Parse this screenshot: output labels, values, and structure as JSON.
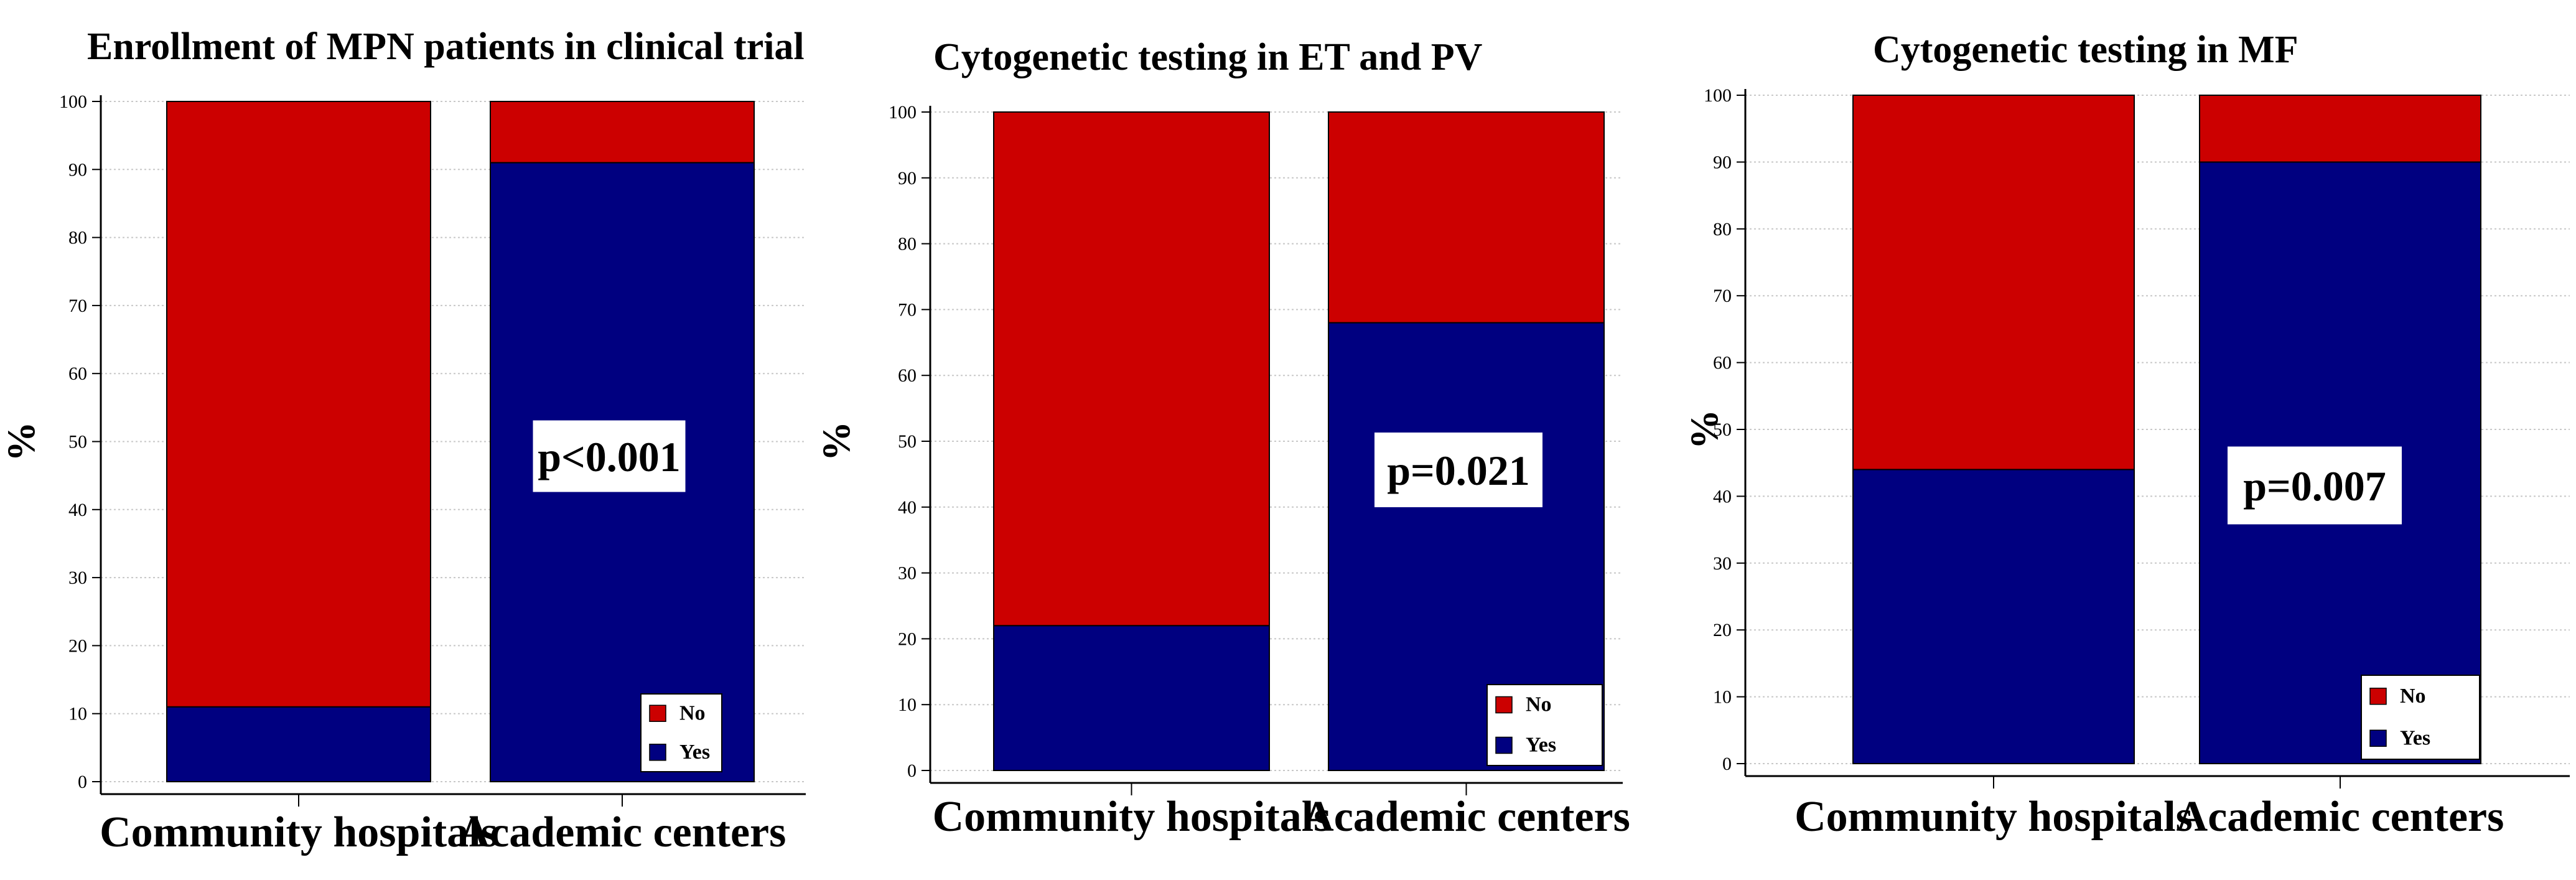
{
  "chart_data": [
    {
      "type": "bar",
      "stacked": true,
      "title": "Enrollment of MPN patients in clinical trial",
      "xlabel": "",
      "ylabel": "%",
      "ylim": [
        0,
        100
      ],
      "yticks": [
        0,
        10,
        20,
        30,
        40,
        50,
        60,
        70,
        80,
        90,
        100
      ],
      "grid": true,
      "categories": [
        "Community hospitals",
        "Academic centers"
      ],
      "series": [
        {
          "name": "Yes",
          "color": "#000080",
          "values": [
            11,
            91
          ]
        },
        {
          "name": "No",
          "color": "#cc0000",
          "values": [
            89,
            9
          ]
        }
      ],
      "annotation": "p<0.001",
      "legend": [
        "No",
        "Yes"
      ],
      "legend_position": "bottom-right"
    },
    {
      "type": "bar",
      "stacked": true,
      "title": "Cytogenetic testing in ET and PV",
      "xlabel": "",
      "ylabel": "%",
      "ylim": [
        0,
        100
      ],
      "yticks": [
        0,
        10,
        20,
        30,
        40,
        50,
        60,
        70,
        80,
        90,
        100
      ],
      "grid": true,
      "categories": [
        "Community hospitals",
        "Academic centers"
      ],
      "series": [
        {
          "name": "Yes",
          "color": "#000080",
          "values": [
            22,
            68
          ]
        },
        {
          "name": "No",
          "color": "#cc0000",
          "values": [
            78,
            32
          ]
        }
      ],
      "annotation": "p=0.021",
      "legend": [
        "No",
        "Yes"
      ],
      "legend_position": "bottom-right"
    },
    {
      "type": "bar",
      "stacked": true,
      "title": "Cytogenetic testing in MF",
      "xlabel": "",
      "ylabel": "%",
      "ylim": [
        0,
        100
      ],
      "yticks": [
        0,
        10,
        20,
        30,
        40,
        50,
        60,
        70,
        80,
        90,
        100
      ],
      "grid": true,
      "categories": [
        "Community hospitals",
        "Academic centers"
      ],
      "series": [
        {
          "name": "Yes",
          "color": "#000080",
          "values": [
            44,
            90
          ]
        },
        {
          "name": "No",
          "color": "#cc0000",
          "values": [
            56,
            10
          ]
        }
      ],
      "annotation": "p=0.007",
      "legend": [
        "No",
        "Yes"
      ],
      "legend_position": "bottom-right"
    }
  ]
}
